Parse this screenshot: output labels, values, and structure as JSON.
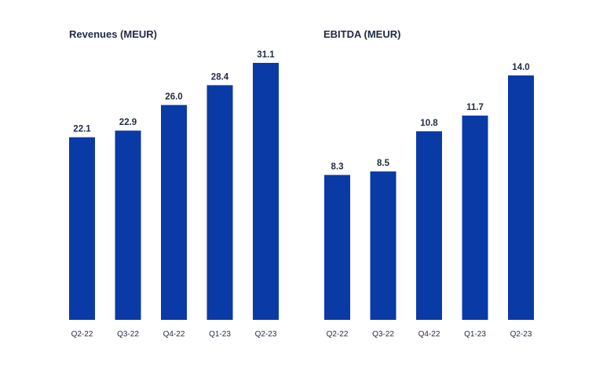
{
  "chart_data": [
    {
      "type": "bar",
      "title": "Revenues (MEUR)",
      "categories": [
        "Q2-22",
        "Q3-22",
        "Q4-22",
        "Q1-23",
        "Q2-23"
      ],
      "values": [
        22.1,
        22.9,
        26.0,
        28.4,
        31.1
      ],
      "value_labels": [
        "22.1",
        "22.9",
        "26.0",
        "28.4",
        "31.1"
      ],
      "ylim": [
        0,
        31.1
      ],
      "grid": false,
      "color": "#0a3aa6"
    },
    {
      "type": "bar",
      "title": "EBITDA (MEUR)",
      "categories": [
        "Q2-22",
        "Q3-22",
        "Q4-22",
        "Q1-23",
        "Q2-23"
      ],
      "values": [
        8.3,
        8.5,
        10.8,
        11.7,
        14.0
      ],
      "value_labels": [
        "8.3",
        "8.5",
        "10.8",
        "11.7",
        "14.0"
      ],
      "ylim": [
        0,
        14.0
      ],
      "grid": false,
      "color": "#0a3aa6"
    }
  ]
}
